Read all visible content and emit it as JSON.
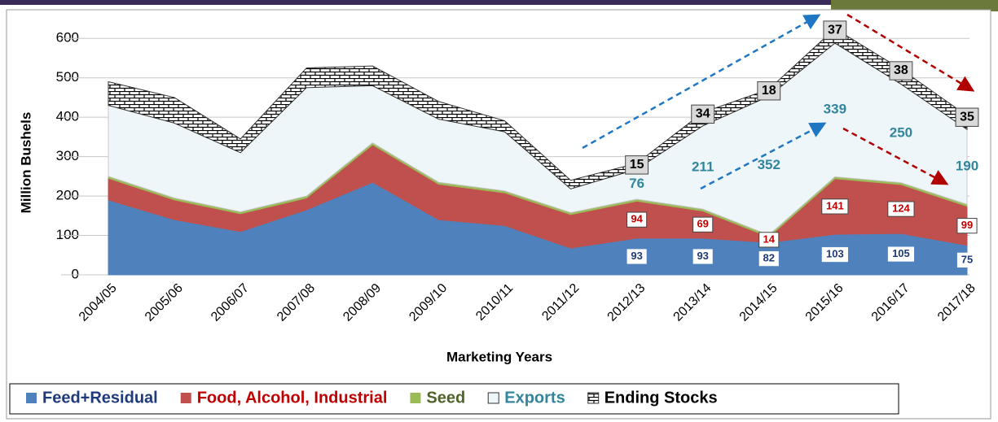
{
  "chart_data": {
    "type": "stacked_area",
    "x_label": "Marketing Years",
    "y_label": "Million Bushels",
    "categories": [
      "2004/05",
      "2005/06",
      "2006/07",
      "2007/08",
      "2008/09",
      "2009/10",
      "2010/11",
      "2011/12",
      "2012/13",
      "2013/14",
      "2014/15",
      "2015/16",
      "2016/17",
      "2017/18"
    ],
    "ylim": [
      0,
      650
    ],
    "yticks": [
      0,
      100,
      200,
      300,
      400,
      500,
      600
    ],
    "grid": true,
    "legend": "bottom",
    "series": [
      {
        "name": "Feed+Residual",
        "color": "#4f81bd",
        "label_color": "#1f3a7a",
        "values": [
          190,
          140,
          110,
          165,
          235,
          140,
          125,
          68,
          93,
          93,
          82,
          103,
          105,
          75
        ],
        "value_labels": [
          null,
          null,
          null,
          null,
          null,
          null,
          null,
          null,
          "93",
          "93",
          "82",
          "103",
          "105",
          "75"
        ]
      },
      {
        "name": "Food, Alcohol, Industrial",
        "color": "#c0504d",
        "label_color": "#c00000",
        "values": [
          55,
          50,
          45,
          30,
          95,
          90,
          83,
          85,
          94,
          69,
          14,
          141,
          124,
          99
        ],
        "value_labels": [
          null,
          null,
          null,
          null,
          null,
          null,
          null,
          null,
          "94",
          "69",
          "14",
          "141",
          "124",
          "99"
        ]
      },
      {
        "name": "Seed",
        "color": "#9bbb59",
        "label_color": "#4f6228",
        "values": [
          5,
          5,
          5,
          5,
          5,
          5,
          5,
          5,
          5,
          5,
          5,
          5,
          5,
          5
        ]
      },
      {
        "name": "Exports",
        "color": "#eef6fa",
        "label_color": "#31859c",
        "values": [
          180,
          190,
          150,
          275,
          145,
          160,
          150,
          60,
          76,
          211,
          352,
          339,
          250,
          190
        ],
        "value_labels": [
          null,
          null,
          null,
          null,
          null,
          null,
          null,
          null,
          "76",
          "211",
          "352",
          "339",
          "250",
          "190"
        ]
      },
      {
        "name": "Ending Stocks",
        "color": "pattern",
        "label_color": "#000000",
        "values": [
          60,
          65,
          35,
          50,
          50,
          45,
          28,
          22,
          15,
          34,
          18,
          37,
          38,
          35
        ],
        "value_labels": [
          null,
          null,
          null,
          null,
          null,
          null,
          null,
          null,
          "15",
          "34",
          "18",
          "37",
          "38",
          "35"
        ]
      }
    ]
  }
}
